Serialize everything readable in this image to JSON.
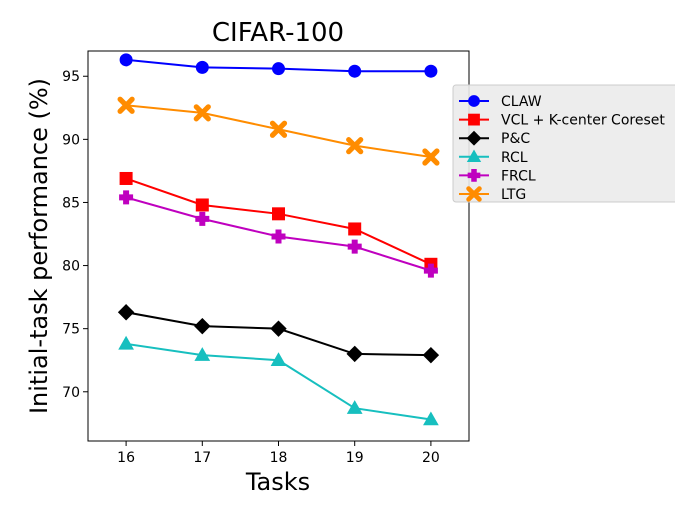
{
  "chart_data": {
    "type": "line",
    "title": "CIFAR-100",
    "xlabel": "Tasks",
    "ylabel": "Initial-task performance (%)",
    "x": [
      16,
      17,
      18,
      19,
      20
    ],
    "xticks": [
      "16",
      "17",
      "18",
      "19",
      "20"
    ],
    "xlim": [
      15.5,
      20.5
    ],
    "yticks": [
      "70",
      "75",
      "80",
      "85",
      "90",
      "95"
    ],
    "ytick_values": [
      70,
      75,
      80,
      85,
      90,
      95
    ],
    "ylim": [
      66.1,
      97.0
    ],
    "grid": false,
    "legend_position": "outside-right-top",
    "series": [
      {
        "name": "CLAW",
        "color": "#0000ff",
        "marker": "circle",
        "values": [
          96.3,
          95.7,
          95.6,
          95.4,
          95.4
        ]
      },
      {
        "name": "VCL + K-center Coreset",
        "color": "#ff0000",
        "marker": "square",
        "values": [
          86.9,
          84.8,
          84.1,
          82.9,
          80.1
        ]
      },
      {
        "name": "P&C",
        "color": "#000000",
        "marker": "diamond",
        "values": [
          76.3,
          75.2,
          75.0,
          73.0,
          72.9
        ]
      },
      {
        "name": "RCL",
        "color": "#17bfbf",
        "marker": "triangle",
        "values": [
          73.8,
          72.9,
          72.5,
          68.7,
          67.8
        ]
      },
      {
        "name": "FRCL",
        "color": "#bf00bf",
        "marker": "plus",
        "values": [
          85.4,
          83.7,
          82.3,
          81.5,
          79.6
        ]
      },
      {
        "name": "LTG",
        "color": "#ff8c00",
        "marker": "x-filled",
        "values": [
          92.7,
          92.1,
          90.8,
          89.5,
          88.6
        ]
      }
    ]
  }
}
